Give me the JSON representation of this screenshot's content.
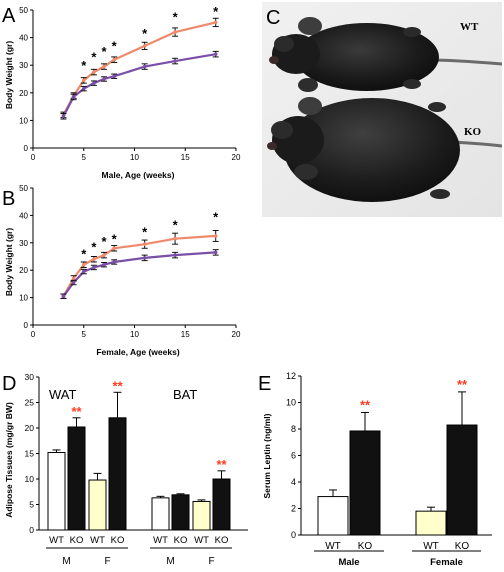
{
  "panels": {
    "A": "A",
    "B": "B",
    "C": "C",
    "D": "D",
    "E": "E"
  },
  "colors": {
    "wt_line": "#7a4fa8",
    "ko_line": "#ee8a6a",
    "star": "#000000",
    "sig_star": "#ff3b1f",
    "bar_black": "#111111",
    "bar_white": "#ffffff",
    "bar_yellow": "#ffffcc"
  },
  "photo": {
    "label_wt": "WT",
    "label_ko": "KO"
  },
  "chart_data": [
    {
      "id": "A",
      "type": "line",
      "xlabel": "Male, Age (weeks)",
      "ylabel": "Body Weight (gr)",
      "xlim": [
        0,
        20
      ],
      "ylim": [
        0,
        50
      ],
      "xticks": [
        0,
        5,
        10,
        15,
        20
      ],
      "yticks": [
        0,
        10,
        20,
        30,
        40,
        50
      ],
      "x": [
        3,
        4,
        5,
        6,
        7,
        8,
        11,
        14,
        18
      ],
      "series": [
        {
          "key": "ko",
          "values": [
            12,
            19,
            24.5,
            27.5,
            29.5,
            32,
            37,
            42,
            45.5
          ],
          "err": [
            1,
            1,
            1,
            1,
            1,
            1,
            1.3,
            1.5,
            1.5
          ]
        },
        {
          "key": "wt",
          "values": [
            11.5,
            18.5,
            21.5,
            23.5,
            25,
            26,
            29.5,
            31.5,
            34
          ],
          "err": [
            1,
            1,
            0.8,
            0.8,
            0.8,
            0.8,
            1,
            1,
            1
          ]
        }
      ],
      "stars_x": [
        5,
        6,
        7,
        8,
        11,
        14,
        18
      ],
      "stars_y": [
        30.5,
        33.5,
        35.5,
        37.5,
        42,
        48,
        50
      ],
      "star_label": "*"
    },
    {
      "id": "B",
      "type": "line",
      "xlabel": "Female, Age (weeks)",
      "ylabel": "Body Weight (gr)",
      "xlim": [
        0,
        20
      ],
      "ylim": [
        0,
        50
      ],
      "xticks": [
        0,
        5,
        10,
        15,
        20
      ],
      "yticks": [
        0,
        10,
        20,
        30,
        40,
        50
      ],
      "x": [
        3,
        4,
        5,
        6,
        7,
        8,
        11,
        14,
        18
      ],
      "series": [
        {
          "key": "ko",
          "values": [
            10.5,
            17,
            22,
            24,
            25.5,
            28,
            29.5,
            31.5,
            32.5
          ],
          "err": [
            0.8,
            1,
            1,
            1,
            1,
            1,
            1.5,
            2,
            2
          ]
        },
        {
          "key": "wt",
          "values": [
            10.5,
            15.5,
            19.5,
            21,
            22,
            23,
            24.5,
            25.5,
            26.5
          ],
          "err": [
            0.8,
            0.8,
            0.8,
            0.8,
            0.8,
            0.8,
            1,
            1,
            1
          ]
        }
      ],
      "stars_x": [
        5,
        6,
        7,
        8,
        11,
        14,
        18
      ],
      "stars_y": [
        26.5,
        29,
        31,
        32,
        34.5,
        37,
        40
      ],
      "star_label": "*"
    },
    {
      "id": "D",
      "type": "bar",
      "ylabel": "Adipose Tissues (mg/gr BW)",
      "ylim": [
        0,
        30
      ],
      "yticks": [
        0,
        5,
        10,
        15,
        20,
        25,
        30
      ],
      "group_labels": [
        "WAT",
        "BAT"
      ],
      "bars": [
        {
          "cat": "WT",
          "sex": "M",
          "tissue": "WAT",
          "value": 15.2,
          "err": 0.5,
          "fill": "white"
        },
        {
          "cat": "KO",
          "sex": "M",
          "tissue": "WAT",
          "value": 20.2,
          "err": 1.8,
          "fill": "black"
        },
        {
          "cat": "WT",
          "sex": "F",
          "tissue": "WAT",
          "value": 9.8,
          "err": 1.3,
          "fill": "yellow"
        },
        {
          "cat": "KO",
          "sex": "F",
          "tissue": "WAT",
          "value": 22.0,
          "err": 5.0,
          "fill": "black"
        },
        {
          "cat": "WT",
          "sex": "M",
          "tissue": "BAT",
          "value": 6.3,
          "err": 0.3,
          "fill": "white"
        },
        {
          "cat": "KO",
          "sex": "M",
          "tissue": "BAT",
          "value": 6.9,
          "err": 0.2,
          "fill": "black"
        },
        {
          "cat": "WT",
          "sex": "F",
          "tissue": "BAT",
          "value": 5.6,
          "err": 0.3,
          "fill": "yellow"
        },
        {
          "cat": "KO",
          "sex": "F",
          "tissue": "BAT",
          "value": 10.0,
          "err": 1.6,
          "fill": "black"
        }
      ],
      "sig_bars": [
        1,
        3,
        7
      ],
      "sig_label": "**",
      "sex_labels": [
        "M",
        "F",
        "M",
        "F"
      ]
    },
    {
      "id": "E",
      "type": "bar",
      "ylabel": "Serum Leptin (ng/ml)",
      "ylim": [
        0,
        12
      ],
      "yticks": [
        0,
        2,
        4,
        6,
        8,
        10,
        12
      ],
      "bars": [
        {
          "cat": "WT",
          "group": "Male",
          "value": 2.9,
          "err": 0.5,
          "fill": "white"
        },
        {
          "cat": "KO",
          "group": "Male",
          "value": 7.85,
          "err": 1.4,
          "fill": "black"
        },
        {
          "cat": "WT",
          "group": "Female",
          "value": 1.8,
          "err": 0.3,
          "fill": "yellow"
        },
        {
          "cat": "KO",
          "group": "Female",
          "value": 8.3,
          "err": 2.5,
          "fill": "black"
        }
      ],
      "sig_bars": [
        1,
        3
      ],
      "sig_label": "**",
      "group_names": [
        "Male",
        "Female"
      ]
    }
  ]
}
